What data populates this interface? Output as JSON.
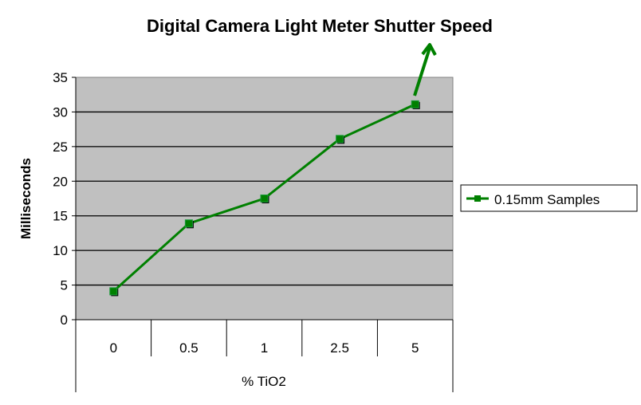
{
  "chart_data": {
    "type": "line",
    "title": "Digital Camera Light Meter Shutter Speed",
    "xlabel": "% TiO2",
    "ylabel": "Milliseconds",
    "categories": [
      "0",
      "0.5",
      "1",
      "2.5",
      "5"
    ],
    "series": [
      {
        "name": "0.15mm Samples",
        "values": [
          4.1,
          13.9,
          17.5,
          26.1,
          31.1
        ],
        "color": "#008000"
      }
    ],
    "ylim": [
      0,
      35
    ],
    "yticks": [
      "0",
      "5",
      "10",
      "15",
      "20",
      "25",
      "30",
      "35"
    ],
    "grid": true,
    "legend": "right",
    "plot_background": "#c0c0c0",
    "annotation": "upward arrow from last point"
  }
}
